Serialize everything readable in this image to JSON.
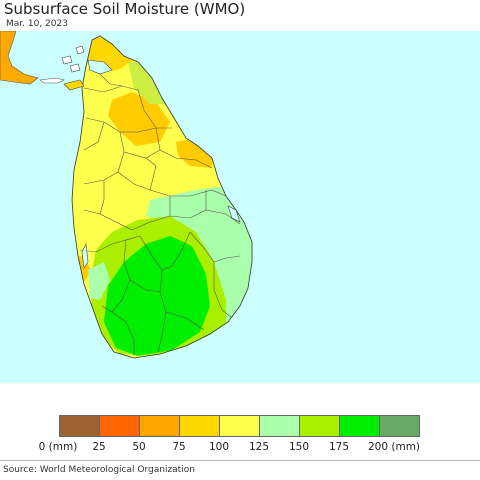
{
  "header": {
    "title": "Subsurface Soil Moisture (WMO)",
    "date": "Mar. 10, 2023"
  },
  "map": {
    "region": "Sri Lanka",
    "colors": {
      "ocean": "#ccffff",
      "island_base": "#ffff4d",
      "india": "#ffaa00",
      "boundaries": "#555555"
    }
  },
  "legend": {
    "colors": [
      "#9c6232",
      "#ff6600",
      "#ffa500",
      "#ffd700",
      "#ffff4d",
      "#aaffaa",
      "#aaee00",
      "#00ee00",
      "#66aa66"
    ],
    "labels": [
      "0 (mm)",
      "25",
      "50",
      "75",
      "100",
      "125",
      "150",
      "175",
      "200 (mm)"
    ]
  },
  "footer": {
    "source": "Source: World Meteorological Organization"
  }
}
